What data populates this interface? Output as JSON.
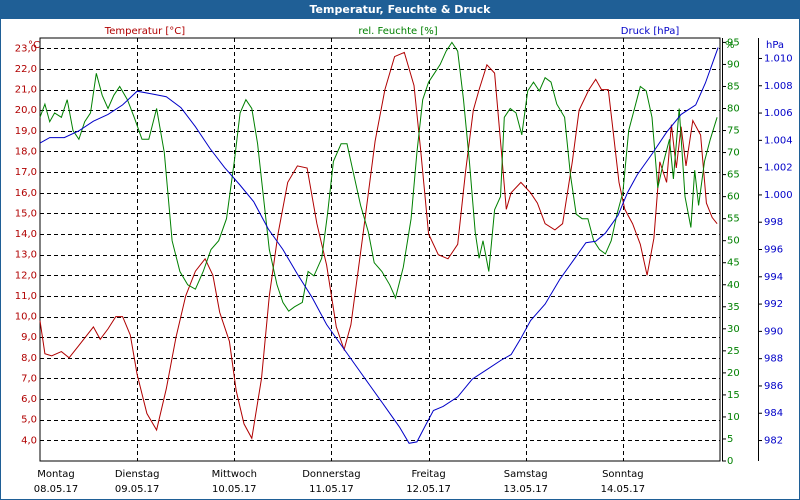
{
  "window": {
    "title": "Temperatur, Feuchte & Druck"
  },
  "chart_data": {
    "type": "line",
    "title": "Temperatur, Feuchte & Druck",
    "grid": true,
    "x": {
      "range": [
        0,
        7
      ],
      "tick_labels": [
        {
          "day": "Montag",
          "date": "08.05.17"
        },
        {
          "day": "Dienstag",
          "date": "09.05.17"
        },
        {
          "day": "Mittwoch",
          "date": "10.05.17"
        },
        {
          "day": "Donnerstag",
          "date": "11.05.17"
        },
        {
          "day": "Freitag",
          "date": "12.05.17"
        },
        {
          "day": "Samstag",
          "date": "13.05.17"
        },
        {
          "day": "Sonntag",
          "date": "14.05.17"
        }
      ]
    },
    "axes": {
      "temperature": {
        "unit": "°C",
        "range": [
          3.0,
          23.5
        ],
        "ticks": [
          "4,0",
          "5,0",
          "6,0",
          "7,0",
          "8,0",
          "9,0",
          "10,0",
          "11,0",
          "12,0",
          "13,0",
          "14,0",
          "15,0",
          "16,0",
          "17,0",
          "18,0",
          "19,0",
          "20,0",
          "21,0",
          "22,0",
          "23,0"
        ],
        "color": "#b00000"
      },
      "humidity": {
        "unit": "%",
        "range": [
          0,
          96
        ],
        "ticks": [
          "0",
          "5",
          "10",
          "15",
          "20",
          "25",
          "30",
          "35",
          "40",
          "45",
          "50",
          "55",
          "60",
          "65",
          "70",
          "75",
          "80",
          "85",
          "90",
          "95"
        ],
        "color": "#008000"
      },
      "pressure": {
        "unit": "hPa",
        "range": [
          980.5,
          1011.5
        ],
        "ticks": [
          "982",
          "984",
          "986",
          "988",
          "990",
          "992",
          "994",
          "996",
          "998",
          "1.000",
          "1.002",
          "1.004",
          "1.006",
          "1.008",
          "1.010"
        ],
        "color": "#0000c8"
      }
    },
    "legend": [
      {
        "label": "Temperatur [°C]",
        "color": "#b00000"
      },
      {
        "label": "rel. Feuchte [%]",
        "color": "#008000"
      },
      {
        "label": "Druck [hPa]",
        "color": "#0000c8"
      }
    ],
    "series": [
      {
        "name": "Temperatur [°C]",
        "axis": "temperature",
        "color": "#b00000",
        "points": [
          [
            0,
            9.8
          ],
          [
            0.05,
            8.2
          ],
          [
            0.12,
            8.1
          ],
          [
            0.22,
            8.3
          ],
          [
            0.3,
            8.0
          ],
          [
            0.4,
            8.6
          ],
          [
            0.55,
            9.5
          ],
          [
            0.62,
            8.9
          ],
          [
            0.7,
            9.4
          ],
          [
            0.78,
            10.0
          ],
          [
            0.85,
            10.0
          ],
          [
            0.93,
            9.1
          ],
          [
            1.0,
            7.2
          ],
          [
            1.1,
            5.3
          ],
          [
            1.2,
            4.5
          ],
          [
            1.3,
            6.5
          ],
          [
            1.4,
            9.0
          ],
          [
            1.5,
            11.0
          ],
          [
            1.6,
            12.2
          ],
          [
            1.7,
            12.8
          ],
          [
            1.78,
            12.0
          ],
          [
            1.85,
            10.2
          ],
          [
            1.95,
            8.8
          ],
          [
            2.02,
            6.4
          ],
          [
            2.1,
            4.8
          ],
          [
            2.18,
            4.1
          ],
          [
            2.28,
            7.0
          ],
          [
            2.36,
            11.0
          ],
          [
            2.45,
            14.0
          ],
          [
            2.55,
            16.5
          ],
          [
            2.65,
            17.3
          ],
          [
            2.75,
            17.2
          ],
          [
            2.85,
            14.5
          ],
          [
            2.95,
            12.5
          ],
          [
            3.05,
            9.5
          ],
          [
            3.13,
            8.4
          ],
          [
            3.2,
            9.6
          ],
          [
            3.32,
            13.8
          ],
          [
            3.45,
            18.5
          ],
          [
            3.55,
            21.0
          ],
          [
            3.65,
            22.6
          ],
          [
            3.75,
            22.8
          ],
          [
            3.85,
            21.2
          ],
          [
            3.92,
            18.0
          ],
          [
            4.0,
            14.0
          ],
          [
            4.1,
            13.0
          ],
          [
            4.2,
            12.8
          ],
          [
            4.3,
            13.5
          ],
          [
            4.38,
            17.0
          ],
          [
            4.46,
            20.0
          ],
          [
            4.52,
            21.0
          ],
          [
            4.6,
            22.2
          ],
          [
            4.68,
            21.8
          ],
          [
            4.75,
            18.0
          ],
          [
            4.8,
            15.2
          ],
          [
            4.85,
            16.0
          ],
          [
            4.95,
            16.5
          ],
          [
            5.05,
            16.0
          ],
          [
            5.12,
            15.5
          ],
          [
            5.2,
            14.5
          ],
          [
            5.3,
            14.2
          ],
          [
            5.38,
            14.5
          ],
          [
            5.48,
            17.5
          ],
          [
            5.55,
            20.0
          ],
          [
            5.65,
            21.0
          ],
          [
            5.72,
            21.5
          ],
          [
            5.78,
            21.0
          ],
          [
            5.85,
            21.0
          ],
          [
            5.9,
            19.0
          ],
          [
            5.96,
            16.5
          ],
          [
            6.02,
            15.2
          ],
          [
            6.1,
            14.5
          ],
          [
            6.18,
            13.5
          ],
          [
            6.25,
            12.0
          ],
          [
            6.32,
            13.8
          ],
          [
            6.38,
            17.5
          ],
          [
            6.45,
            16.5
          ],
          [
            6.5,
            19.3
          ],
          [
            6.55,
            17.2
          ],
          [
            6.6,
            19.2
          ],
          [
            6.65,
            17.3
          ],
          [
            6.72,
            19.5
          ],
          [
            6.8,
            18.8
          ],
          [
            6.86,
            15.5
          ],
          [
            6.92,
            14.8
          ],
          [
            6.97,
            14.5
          ]
        ]
      },
      {
        "name": "rel. Feuchte [%]",
        "axis": "humidity",
        "color": "#008000",
        "points": [
          [
            0,
            78
          ],
          [
            0.05,
            81
          ],
          [
            0.1,
            77
          ],
          [
            0.15,
            79
          ],
          [
            0.22,
            78
          ],
          [
            0.28,
            82
          ],
          [
            0.34,
            75
          ],
          [
            0.4,
            73
          ],
          [
            0.46,
            77
          ],
          [
            0.52,
            79
          ],
          [
            0.58,
            88
          ],
          [
            0.64,
            83
          ],
          [
            0.7,
            80
          ],
          [
            0.76,
            83
          ],
          [
            0.82,
            85
          ],
          [
            0.9,
            82
          ],
          [
            0.97,
            78
          ],
          [
            1.05,
            73
          ],
          [
            1.12,
            73
          ],
          [
            1.2,
            80
          ],
          [
            1.28,
            70
          ],
          [
            1.36,
            50
          ],
          [
            1.44,
            43
          ],
          [
            1.52,
            40
          ],
          [
            1.6,
            39
          ],
          [
            1.68,
            43
          ],
          [
            1.76,
            48
          ],
          [
            1.84,
            50
          ],
          [
            1.92,
            55
          ],
          [
            2.0,
            68
          ],
          [
            2.06,
            79
          ],
          [
            2.12,
            82
          ],
          [
            2.18,
            80
          ],
          [
            2.24,
            72
          ],
          [
            2.3,
            60
          ],
          [
            2.36,
            48
          ],
          [
            2.44,
            40
          ],
          [
            2.5,
            36
          ],
          [
            2.56,
            34
          ],
          [
            2.62,
            35
          ],
          [
            2.7,
            36
          ],
          [
            2.76,
            43
          ],
          [
            2.82,
            42
          ],
          [
            2.9,
            46
          ],
          [
            2.96,
            56
          ],
          [
            3.02,
            68
          ],
          [
            3.1,
            72
          ],
          [
            3.16,
            72
          ],
          [
            3.22,
            66
          ],
          [
            3.3,
            58
          ],
          [
            3.38,
            52
          ],
          [
            3.44,
            45
          ],
          [
            3.52,
            43
          ],
          [
            3.6,
            40
          ],
          [
            3.66,
            37
          ],
          [
            3.74,
            44
          ],
          [
            3.82,
            55
          ],
          [
            3.88,
            70
          ],
          [
            3.94,
            82
          ],
          [
            4.0,
            86
          ],
          [
            4.06,
            88
          ],
          [
            4.12,
            90
          ],
          [
            4.18,
            93
          ],
          [
            4.24,
            95
          ],
          [
            4.3,
            93
          ],
          [
            4.36,
            82
          ],
          [
            4.42,
            68
          ],
          [
            4.48,
            52
          ],
          [
            4.52,
            46
          ],
          [
            4.56,
            50
          ],
          [
            4.62,
            43
          ],
          [
            4.68,
            57
          ],
          [
            4.74,
            60
          ],
          [
            4.78,
            78
          ],
          [
            4.84,
            80
          ],
          [
            4.9,
            79
          ],
          [
            4.96,
            74
          ],
          [
            5.02,
            84
          ],
          [
            5.08,
            86
          ],
          [
            5.14,
            84
          ],
          [
            5.2,
            87
          ],
          [
            5.26,
            86
          ],
          [
            5.32,
            81
          ],
          [
            5.4,
            78
          ],
          [
            5.46,
            65
          ],
          [
            5.52,
            56
          ],
          [
            5.58,
            55
          ],
          [
            5.64,
            55
          ],
          [
            5.7,
            50
          ],
          [
            5.76,
            48
          ],
          [
            5.82,
            47
          ],
          [
            5.88,
            50
          ],
          [
            5.94,
            56
          ],
          [
            6.0,
            61
          ],
          [
            6.06,
            75
          ],
          [
            6.12,
            80
          ],
          [
            6.18,
            85
          ],
          [
            6.24,
            84
          ],
          [
            6.3,
            78
          ],
          [
            6.36,
            62
          ],
          [
            6.42,
            68
          ],
          [
            6.48,
            73
          ],
          [
            6.52,
            64
          ],
          [
            6.58,
            80
          ],
          [
            6.64,
            60
          ],
          [
            6.7,
            53
          ],
          [
            6.74,
            66
          ],
          [
            6.78,
            58
          ],
          [
            6.84,
            68
          ],
          [
            6.9,
            73
          ],
          [
            6.97,
            78
          ]
        ]
      },
      {
        "name": "Druck [hPa]",
        "axis": "pressure",
        "color": "#0000c8",
        "points": [
          [
            0,
            1003.8
          ],
          [
            0.1,
            1004.2
          ],
          [
            0.25,
            1004.2
          ],
          [
            0.4,
            1004.7
          ],
          [
            0.55,
            1005.4
          ],
          [
            0.7,
            1005.9
          ],
          [
            0.85,
            1006.6
          ],
          [
            1.0,
            1007.6
          ],
          [
            1.15,
            1007.4
          ],
          [
            1.3,
            1007.2
          ],
          [
            1.45,
            1006.4
          ],
          [
            1.6,
            1005.0
          ],
          [
            1.75,
            1003.4
          ],
          [
            1.9,
            1002.0
          ],
          [
            2.05,
            1000.8
          ],
          [
            2.2,
            999.5
          ],
          [
            2.35,
            997.5
          ],
          [
            2.5,
            996.0
          ],
          [
            2.65,
            994.2
          ],
          [
            2.8,
            992.5
          ],
          [
            2.95,
            990.5
          ],
          [
            3.1,
            989.0
          ],
          [
            3.25,
            987.5
          ],
          [
            3.4,
            986.0
          ],
          [
            3.55,
            984.5
          ],
          [
            3.7,
            983.0
          ],
          [
            3.8,
            981.8
          ],
          [
            3.88,
            981.9
          ],
          [
            3.96,
            983.0
          ],
          [
            4.05,
            984.2
          ],
          [
            4.15,
            984.5
          ],
          [
            4.3,
            985.2
          ],
          [
            4.45,
            986.5
          ],
          [
            4.6,
            987.2
          ],
          [
            4.75,
            987.9
          ],
          [
            4.85,
            988.3
          ],
          [
            4.95,
            989.5
          ],
          [
            5.05,
            990.8
          ],
          [
            5.2,
            992.0
          ],
          [
            5.35,
            993.8
          ],
          [
            5.5,
            995.3
          ],
          [
            5.62,
            996.5
          ],
          [
            5.72,
            996.6
          ],
          [
            5.82,
            997.2
          ],
          [
            5.95,
            998.5
          ],
          [
            6.05,
            1000.2
          ],
          [
            6.15,
            1001.5
          ],
          [
            6.3,
            1003.0
          ],
          [
            6.45,
            1004.6
          ],
          [
            6.6,
            1005.9
          ],
          [
            6.75,
            1006.6
          ],
          [
            6.85,
            1008.2
          ],
          [
            6.93,
            1009.8
          ],
          [
            6.98,
            1010.8
          ]
        ]
      }
    ]
  }
}
